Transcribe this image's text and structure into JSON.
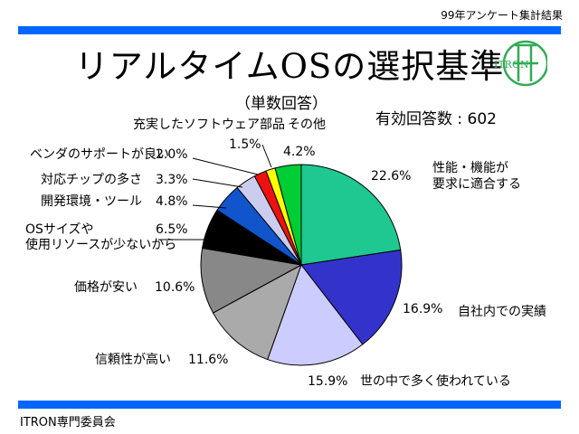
{
  "header": {
    "survey": "99年アンケート集計結果"
  },
  "title": "リアルタイムOSの選択基準",
  "subtitle": "（単数回答）",
  "total_label": "有効回答数 : 602",
  "footer": "ITRON専門委員会",
  "logo": {
    "text": "ITRON",
    "icon": "itron-logo-icon",
    "color": "#33aa55"
  },
  "chart_data": {
    "type": "pie",
    "title": "リアルタイムOSの選択基準",
    "subtitle": "（単数回答）",
    "slices": [
      {
        "label": "性能・機能が要求に適合する",
        "value": 22.6,
        "value_text": "22.6%",
        "color": "#1ec890"
      },
      {
        "label": "自社内での実績",
        "value": 16.9,
        "value_text": "16.9%",
        "color": "#3333cc"
      },
      {
        "label": "世の中で多く使われている",
        "value": 15.9,
        "value_text": "15.9%",
        "color": "#ccccff"
      },
      {
        "label": "信頼性が高い",
        "value": 11.6,
        "value_text": "11.6%",
        "color": "#aaaaaa"
      },
      {
        "label": "価格が安い",
        "value": 10.6,
        "value_text": "10.6%",
        "color": "#888888"
      },
      {
        "label": "OSサイズや使用リソースが少ないから",
        "value": 6.5,
        "value_text": "6.5%",
        "color": "#000000"
      },
      {
        "label": "開発環境・ツール",
        "value": 4.8,
        "value_text": "4.8%",
        "color": "#1155cc"
      },
      {
        "label": "対応チップの多さ",
        "value": 3.3,
        "value_text": "3.3%",
        "color": "#ccccee"
      },
      {
        "label": "ベンダのサポートが良い",
        "value": 2.0,
        "value_text": "2.0%",
        "color": "#ee1111"
      },
      {
        "label": "充実したソフトウェア部品",
        "value": 1.5,
        "value_text": "1.5%",
        "color": "#ffff00"
      },
      {
        "label": "その他",
        "value": 4.2,
        "value_text": "4.2%",
        "color": "#00cc33"
      }
    ]
  }
}
